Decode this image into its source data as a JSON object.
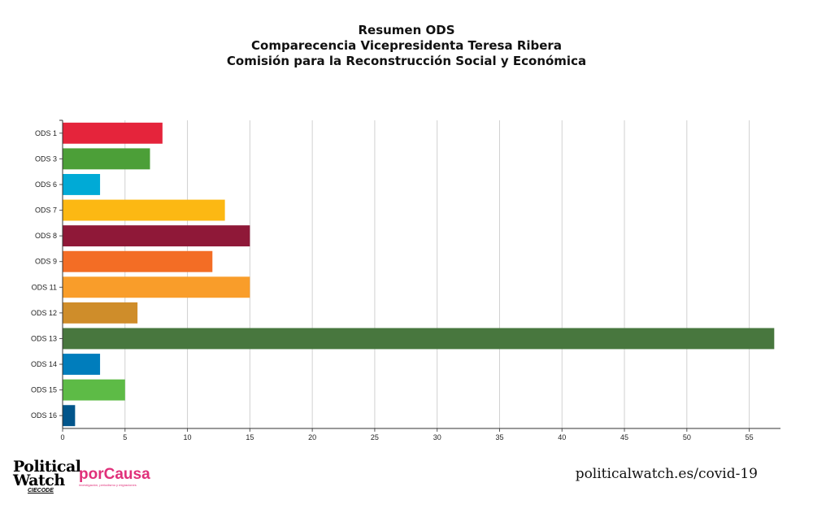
{
  "header": {
    "title_line1": "Resumen ODS",
    "title_line2": "Comparecencia Vicepresidenta Teresa Ribera",
    "title_line3": "Comisión para la Reconstrucción Social y Económica"
  },
  "footer": {
    "logo_political_watch": "Political Watch",
    "logo_political_watch_sub": "CIECODE",
    "logo_porcausa": "porCausa",
    "logo_porcausa_tagline": "investigación, periodismo y migraciones",
    "url": "politicalwatch.es/covid-19"
  },
  "chart_data": {
    "type": "bar",
    "orientation": "horizontal",
    "title": "Resumen ODS\nComparecencia Vicepresidenta Teresa Ribera\nComisión para la Reconstrucción Social y Económica",
    "categories": [
      "ODS 1",
      "ODS 3",
      "ODS 6",
      "ODS 7",
      "ODS 8",
      "ODS 9",
      "ODS 11",
      "ODS 12",
      "ODS 13",
      "ODS 14",
      "ODS 15",
      "ODS 16"
    ],
    "values": [
      8,
      7,
      3,
      13,
      15,
      12,
      15,
      6,
      57,
      3,
      5,
      1
    ],
    "colors": [
      "#e5243b",
      "#4c9f38",
      "#00aad6",
      "#fcb813",
      "#8f1838",
      "#f36d25",
      "#f99d2a",
      "#cf8d2a",
      "#48773e",
      "#007dbc",
      "#5dbb46",
      "#02558b"
    ],
    "xlim": [
      0,
      57.5
    ],
    "xticks": [
      0,
      5,
      10,
      15,
      20,
      25,
      30,
      35,
      40,
      45,
      50,
      55
    ],
    "grid": true,
    "xlabel": "",
    "ylabel": ""
  }
}
